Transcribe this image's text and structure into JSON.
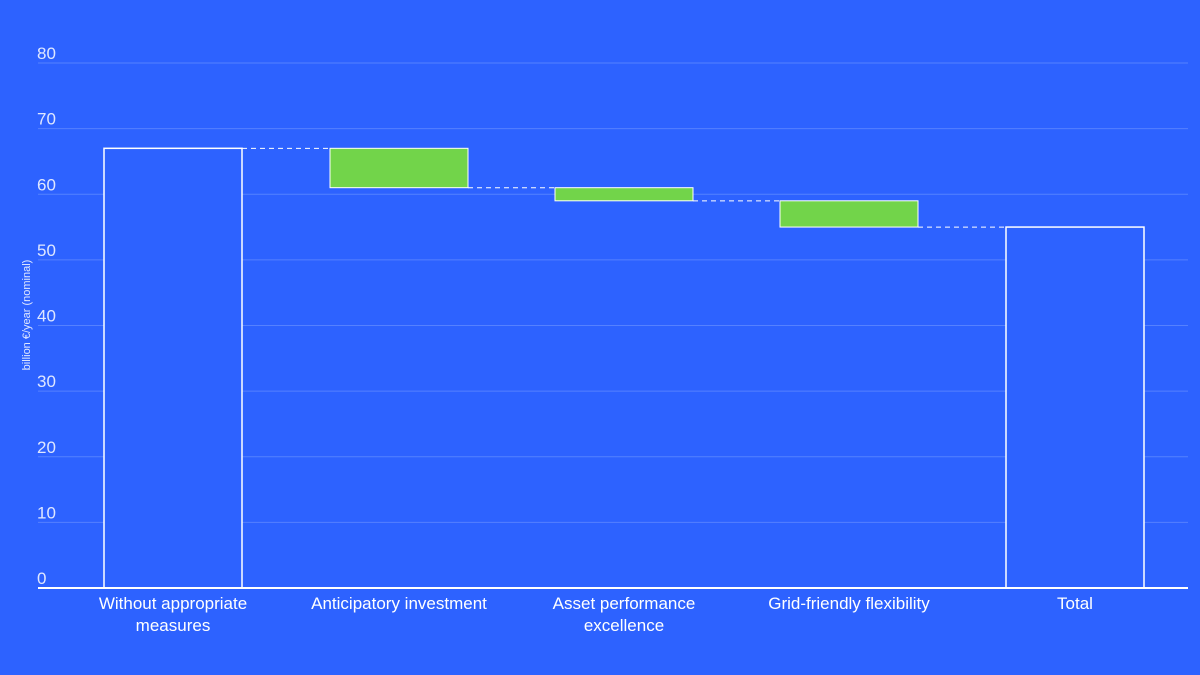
{
  "chart_data": {
    "type": "waterfall",
    "title": "",
    "ylabel": "billion €/year (nominal)",
    "xlabel": "",
    "ylim": [
      0,
      80
    ],
    "yticks": [
      0,
      10,
      20,
      30,
      40,
      50,
      60,
      70,
      80
    ],
    "grid": true,
    "categories": [
      [
        "Without appropriate",
        "measures"
      ],
      [
        "Anticipatory investment"
      ],
      [
        "Asset performance",
        "excellence"
      ],
      [
        "Grid-friendly flexibility"
      ],
      [
        "Total"
      ]
    ],
    "bars": [
      {
        "kind": "total",
        "start": 0,
        "end": 67
      },
      {
        "kind": "decrease",
        "start": 67,
        "end": 61
      },
      {
        "kind": "decrease",
        "start": 61,
        "end": 59
      },
      {
        "kind": "decrease",
        "start": 59,
        "end": 55
      },
      {
        "kind": "total",
        "start": 0,
        "end": 55
      }
    ],
    "colors": {
      "background": "#2d62ff",
      "total_fill": "#2d62ff",
      "total_stroke": "#ffffff",
      "decrease_fill": "#72d44a",
      "grid": "#5581ff",
      "axis": "#ffffff",
      "connector": "#ffffff"
    }
  }
}
